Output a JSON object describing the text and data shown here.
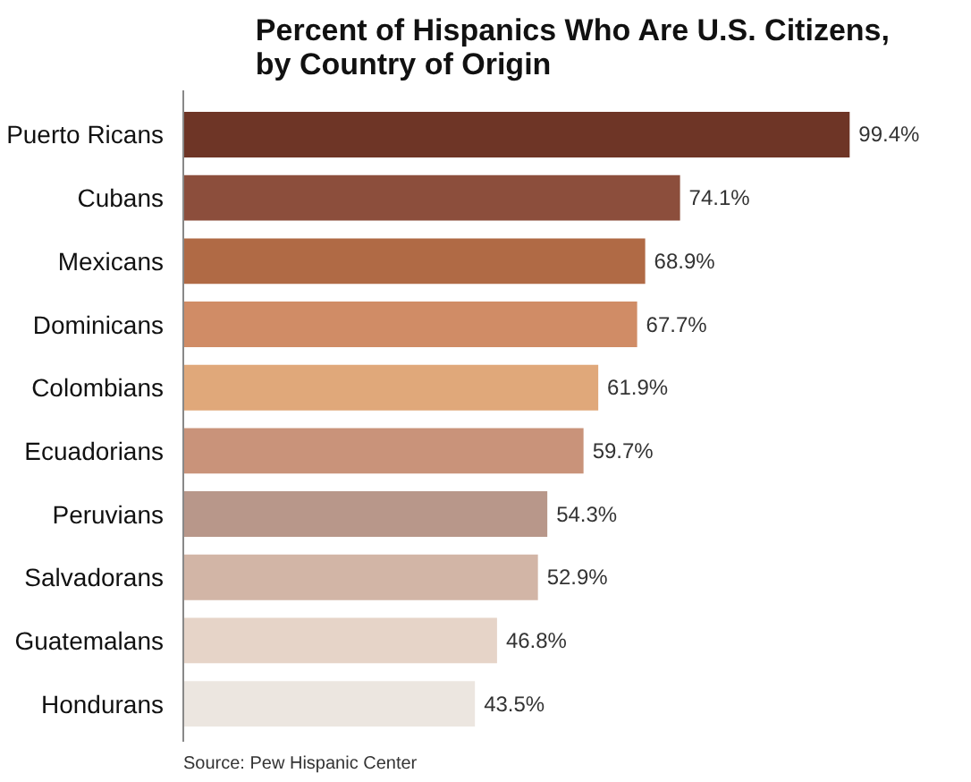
{
  "chart_data": {
    "type": "bar",
    "orientation": "horizontal",
    "title": "Percent of Hispanics Who Are U.S. Citizens,\nby Country of Origin",
    "categories": [
      "Puerto Ricans",
      "Cubans",
      "Mexicans",
      "Dominicans",
      "Colombians",
      "Ecuadorians",
      "Peruvians",
      "Salvadorans",
      "Guatemalans",
      "Hondurans"
    ],
    "values": [
      99.4,
      74.1,
      68.9,
      67.7,
      61.9,
      59.7,
      54.3,
      52.9,
      46.8,
      43.5
    ],
    "value_labels": [
      "99.4%",
      "74.1%",
      "68.9%",
      "67.7%",
      "61.9%",
      "59.7%",
      "54.3%",
      "52.9%",
      "46.8%",
      "43.5%"
    ],
    "colors": [
      "#6e3526",
      "#8c4e3c",
      "#b06a45",
      "#d08c66",
      "#e0a87a",
      "#c9937a",
      "#b8978a",
      "#d2b5a6",
      "#e6d4c8",
      "#ece6e0"
    ],
    "annotations": [
      "Source: Pew Hispanic Center"
    ]
  }
}
